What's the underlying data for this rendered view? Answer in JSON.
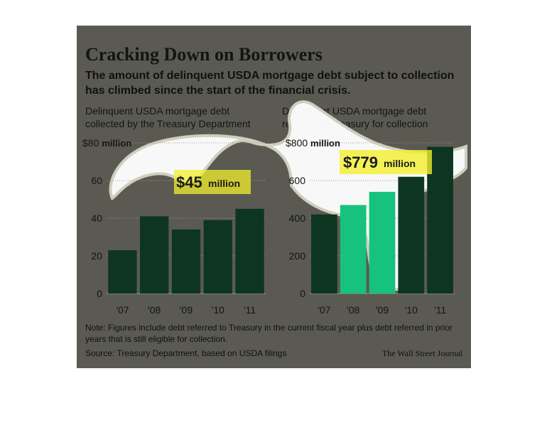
{
  "header": {
    "title": "Cracking Down on Borrowers",
    "subtitle": "The amount of delinquent USDA mortgage debt subject to collection has climbed since the start of the financial crisis."
  },
  "footer": {
    "note": "Note: Figures include debt referred to Treasury in the current fiscal year plus debt referred in prior years that is still eligible for collection.",
    "source": "Source: Treasury Department, based on USDA filings",
    "credit": "The Wall Street Journal"
  },
  "colors": {
    "background": "#5a5a52",
    "bar_dark": "#0d3520",
    "bar_bright": "#16c27d",
    "callout": "#f3ef2d",
    "overlay": "#ffffff"
  },
  "chart_data": [
    {
      "type": "bar",
      "title": "Delinquent USDA mortgage debt collected by the Treasury Department",
      "categories": [
        "'07",
        "'08",
        "'09",
        "'10",
        "'11"
      ],
      "values": [
        23,
        41,
        34,
        39,
        45
      ],
      "ylim": [
        0,
        80
      ],
      "yticks": [
        0,
        20,
        40,
        60,
        80
      ],
      "ytick_labels": [
        "0",
        "20",
        "40",
        "60",
        "$80 million"
      ],
      "annotation": {
        "value": "$45",
        "unit": "million"
      },
      "grid": true
    },
    {
      "type": "bar",
      "title": "Delinquent USDA mortgage debt referred to Treasury for collection",
      "categories": [
        "'07",
        "'08",
        "'09",
        "'10",
        "'11"
      ],
      "values": [
        420,
        470,
        540,
        620,
        779
      ],
      "ylim": [
        0,
        800
      ],
      "yticks": [
        0,
        200,
        400,
        600,
        800
      ],
      "ytick_labels": [
        "0",
        "200",
        "400",
        "600",
        "$800 million"
      ],
      "highlighted": [
        "'08",
        "'09"
      ],
      "annotation": {
        "value": "$779",
        "unit": "million"
      },
      "grid": true
    }
  ]
}
